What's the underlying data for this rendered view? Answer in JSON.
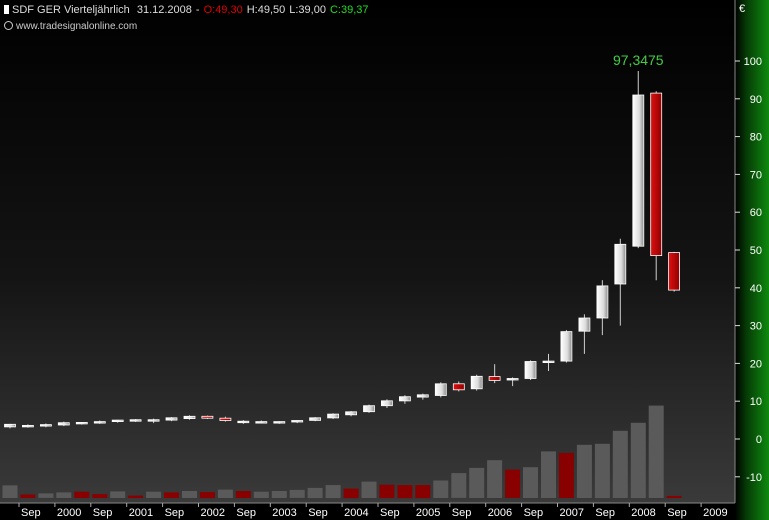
{
  "header": {
    "symbol": "SDF GER Vierteljährlich",
    "date": "31.12.2008",
    "sep": "-",
    "open": "O:49,30",
    "high": "H:49,50",
    "low": "L:39,00",
    "close": "C:39,37",
    "source": "www.tradesignalonline.com",
    "currency": "€"
  },
  "colors": {
    "up": "#f0f0f0",
    "down": "#cc0000",
    "peak_label": "#44cc44",
    "volume_up": "#5a5a5a",
    "volume_down": "#880000",
    "right_band": "#0b7a0b"
  },
  "chart_data": {
    "type": "candlestick",
    "peak_label": "97,3475",
    "y_ticks": [
      "100",
      "90",
      "80",
      "70",
      "60",
      "50",
      "40",
      "30",
      "20",
      "10",
      "0",
      "-10"
    ],
    "ylim": [
      -16,
      110
    ],
    "x_labels": [
      "Sep",
      "2000",
      "Sep",
      "2001",
      "Sep",
      "2002",
      "Sep",
      "2003",
      "Sep",
      "2004",
      "Sep",
      "2005",
      "Sep",
      "2006",
      "Sep",
      "2007",
      "Sep",
      "2008",
      "Sep",
      "2009"
    ],
    "candles": [
      {
        "o": 3.2,
        "h": 4.0,
        "l": 2.8,
        "c": 3.9
      },
      {
        "o": 3.4,
        "h": 3.9,
        "l": 3.0,
        "c": 3.6
      },
      {
        "o": 3.5,
        "h": 4.1,
        "l": 3.1,
        "c": 3.8
      },
      {
        "o": 3.7,
        "h": 4.6,
        "l": 3.4,
        "c": 4.3
      },
      {
        "o": 4.0,
        "h": 4.5,
        "l": 3.8,
        "c": 4.4
      },
      {
        "o": 4.4,
        "h": 4.9,
        "l": 4.0,
        "c": 4.6
      },
      {
        "o": 4.6,
        "h": 5.1,
        "l": 4.3,
        "c": 5.0
      },
      {
        "o": 4.8,
        "h": 5.3,
        "l": 4.5,
        "c": 5.1
      },
      {
        "o": 4.8,
        "h": 5.4,
        "l": 4.2,
        "c": 5.1
      },
      {
        "o": 5.0,
        "h": 5.8,
        "l": 4.7,
        "c": 5.6
      },
      {
        "o": 5.4,
        "h": 6.3,
        "l": 5.1,
        "c": 6.0
      },
      {
        "o": 6.0,
        "h": 6.2,
        "l": 5.3,
        "c": 5.5
      },
      {
        "o": 5.5,
        "h": 5.9,
        "l": 4.6,
        "c": 4.9
      },
      {
        "o": 4.6,
        "h": 5.0,
        "l": 4.0,
        "c": 4.7
      },
      {
        "o": 4.6,
        "h": 4.9,
        "l": 4.1,
        "c": 4.6
      },
      {
        "o": 4.4,
        "h": 4.7,
        "l": 4.0,
        "c": 4.6
      },
      {
        "o": 4.6,
        "h": 5.0,
        "l": 4.2,
        "c": 4.9
      },
      {
        "o": 4.9,
        "h": 5.8,
        "l": 4.7,
        "c": 5.6
      },
      {
        "o": 5.6,
        "h": 6.8,
        "l": 5.3,
        "c": 6.6
      },
      {
        "o": 6.4,
        "h": 7.4,
        "l": 6.0,
        "c": 7.2
      },
      {
        "o": 7.2,
        "h": 9.1,
        "l": 6.9,
        "c": 8.8
      },
      {
        "o": 8.8,
        "h": 10.5,
        "l": 8.2,
        "c": 10.1
      },
      {
        "o": 10.1,
        "h": 11.6,
        "l": 9.3,
        "c": 11.2
      },
      {
        "o": 11.1,
        "h": 12.0,
        "l": 10.4,
        "c": 11.7
      },
      {
        "o": 11.5,
        "h": 15.0,
        "l": 11.0,
        "c": 14.6
      },
      {
        "o": 14.6,
        "h": 15.2,
        "l": 12.6,
        "c": 13.0
      },
      {
        "o": 13.3,
        "h": 17.0,
        "l": 12.8,
        "c": 16.6
      },
      {
        "o": 16.5,
        "h": 19.8,
        "l": 14.8,
        "c": 15.5
      },
      {
        "o": 15.6,
        "h": 16.3,
        "l": 14.0,
        "c": 16.0
      },
      {
        "o": 16.0,
        "h": 20.8,
        "l": 15.6,
        "c": 20.5
      },
      {
        "o": 20.3,
        "h": 22.5,
        "l": 18.0,
        "c": 20.6
      },
      {
        "o": 20.6,
        "h": 28.8,
        "l": 20.2,
        "c": 28.4
      },
      {
        "o": 28.5,
        "h": 33.0,
        "l": 22.5,
        "c": 32.0
      },
      {
        "o": 32.0,
        "h": 42.0,
        "l": 27.5,
        "c": 40.5
      },
      {
        "o": 41.0,
        "h": 53.0,
        "l": 30.0,
        "c": 51.5
      },
      {
        "o": 51.0,
        "h": 97.3475,
        "l": 50.5,
        "c": 91.0
      },
      {
        "o": 91.5,
        "h": 92.0,
        "l": 42.0,
        "c": 48.5
      },
      {
        "o": 49.3,
        "h": 49.5,
        "l": 39.0,
        "c": 39.37
      }
    ],
    "volume": [
      {
        "v": 3.6,
        "down": false
      },
      {
        "v": 1.0,
        "down": true
      },
      {
        "v": 1.3,
        "down": false
      },
      {
        "v": 1.6,
        "down": false
      },
      {
        "v": 1.8,
        "down": true
      },
      {
        "v": 1.1,
        "down": true
      },
      {
        "v": 1.9,
        "down": false
      },
      {
        "v": 0.7,
        "down": true
      },
      {
        "v": 1.8,
        "down": false
      },
      {
        "v": 1.6,
        "down": true
      },
      {
        "v": 2.0,
        "down": false
      },
      {
        "v": 1.7,
        "down": true
      },
      {
        "v": 2.4,
        "down": false
      },
      {
        "v": 2.0,
        "down": true
      },
      {
        "v": 1.8,
        "down": false
      },
      {
        "v": 2.0,
        "down": false
      },
      {
        "v": 2.3,
        "down": false
      },
      {
        "v": 2.9,
        "down": false
      },
      {
        "v": 3.7,
        "down": false
      },
      {
        "v": 2.7,
        "down": true
      },
      {
        "v": 4.7,
        "down": false
      },
      {
        "v": 3.8,
        "down": true
      },
      {
        "v": 3.7,
        "down": true
      },
      {
        "v": 3.7,
        "down": true
      },
      {
        "v": 5.0,
        "down": false
      },
      {
        "v": 7.1,
        "down": false
      },
      {
        "v": 8.6,
        "down": false
      },
      {
        "v": 10.8,
        "down": false
      },
      {
        "v": 8.1,
        "down": true
      },
      {
        "v": 8.8,
        "down": false
      },
      {
        "v": 13.3,
        "down": false
      },
      {
        "v": 12.9,
        "down": true
      },
      {
        "v": 15.2,
        "down": false
      },
      {
        "v": 15.5,
        "down": false
      },
      {
        "v": 19.2,
        "down": false
      },
      {
        "v": 21.5,
        "down": false
      },
      {
        "v": 26.4,
        "down": false
      },
      {
        "v": 0.6,
        "down": true
      }
    ]
  }
}
